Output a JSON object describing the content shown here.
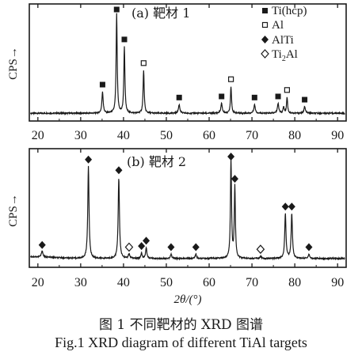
{
  "legend": [
    {
      "marker": "filled-square",
      "label_main": "Ti(hcp)",
      "label_sub": ""
    },
    {
      "marker": "open-square",
      "label_main": "Al",
      "label_sub": ""
    },
    {
      "marker": "filled-diamond",
      "label_main": "AlTi",
      "label_sub": ""
    },
    {
      "marker": "open-diamond",
      "label_main": "Ti",
      "label_sub": "2",
      "label_tail": "Al"
    }
  ],
  "chart_data": [
    {
      "type": "line",
      "panel_label": "(a) 靶材 1",
      "ylabel": "CPS→",
      "xlabel": "",
      "xlim": [
        18,
        92
      ],
      "xticks": [
        20,
        30,
        40,
        50,
        60,
        70,
        80,
        90
      ],
      "baseline": 0.05,
      "peaks": [
        {
          "x": 35.1,
          "h": 0.2,
          "w": 0.35,
          "marker": "filled-square"
        },
        {
          "x": 38.4,
          "h": 0.92,
          "w": 0.3,
          "marker": "filled-square"
        },
        {
          "x": 40.2,
          "h": 0.62,
          "w": 0.3,
          "marker": "filled-square"
        },
        {
          "x": 44.7,
          "h": 0.4,
          "w": 0.3,
          "marker": "open-square"
        },
        {
          "x": 53.0,
          "h": 0.08,
          "w": 0.4,
          "marker": "filled-square"
        },
        {
          "x": 62.9,
          "h": 0.09,
          "w": 0.4,
          "marker": "filled-square"
        },
        {
          "x": 65.1,
          "h": 0.25,
          "w": 0.3,
          "marker": "open-square"
        },
        {
          "x": 70.6,
          "h": 0.08,
          "w": 0.4,
          "marker": "filled-square"
        },
        {
          "x": 76.1,
          "h": 0.09,
          "w": 0.4,
          "marker": "filled-square"
        },
        {
          "x": 77.4,
          "h": 0.06,
          "w": 0.3,
          "marker": ""
        },
        {
          "x": 78.2,
          "h": 0.15,
          "w": 0.3,
          "marker": "open-square"
        },
        {
          "x": 82.3,
          "h": 0.06,
          "w": 0.4,
          "marker": "filled-square"
        }
      ]
    },
    {
      "type": "line",
      "panel_label": "(b) 靶材 2",
      "ylabel": "CPS→",
      "xlabel": "2θ/(°)",
      "xlim": [
        18,
        92
      ],
      "xticks": [
        20,
        30,
        40,
        50,
        60,
        70,
        80,
        90
      ],
      "baseline": 0.06,
      "peaks": [
        {
          "x": 21.0,
          "h": 0.06,
          "w": 0.4,
          "marker": "filled-diamond"
        },
        {
          "x": 31.8,
          "h": 0.86,
          "w": 0.35,
          "marker": "filled-diamond"
        },
        {
          "x": 38.9,
          "h": 0.76,
          "w": 0.35,
          "marker": "filled-diamond"
        },
        {
          "x": 41.3,
          "h": 0.04,
          "w": 0.4,
          "marker": "open-diamond"
        },
        {
          "x": 44.2,
          "h": 0.05,
          "w": 0.35,
          "marker": "filled-diamond"
        },
        {
          "x": 45.3,
          "h": 0.1,
          "w": 0.35,
          "marker": "filled-diamond"
        },
        {
          "x": 51.1,
          "h": 0.04,
          "w": 0.4,
          "marker": "filled-diamond"
        },
        {
          "x": 56.9,
          "h": 0.04,
          "w": 0.4,
          "marker": "filled-diamond"
        },
        {
          "x": 65.1,
          "h": 0.93,
          "w": 0.3,
          "marker": "filled-diamond"
        },
        {
          "x": 66.0,
          "h": 0.68,
          "w": 0.3,
          "marker": "filled-diamond"
        },
        {
          "x": 72.0,
          "h": 0.02,
          "w": 0.4,
          "marker": "open-diamond"
        },
        {
          "x": 77.8,
          "h": 0.42,
          "w": 0.35,
          "marker": "filled-diamond"
        },
        {
          "x": 79.3,
          "h": 0.42,
          "w": 0.35,
          "marker": "filled-diamond"
        },
        {
          "x": 83.3,
          "h": 0.04,
          "w": 0.4,
          "marker": "filled-diamond"
        }
      ]
    }
  ],
  "caption_zh": "图 1  不同靶材的 XRD 图谱",
  "caption_en": "Fig.1  XRD diagram of different TiAl targets"
}
